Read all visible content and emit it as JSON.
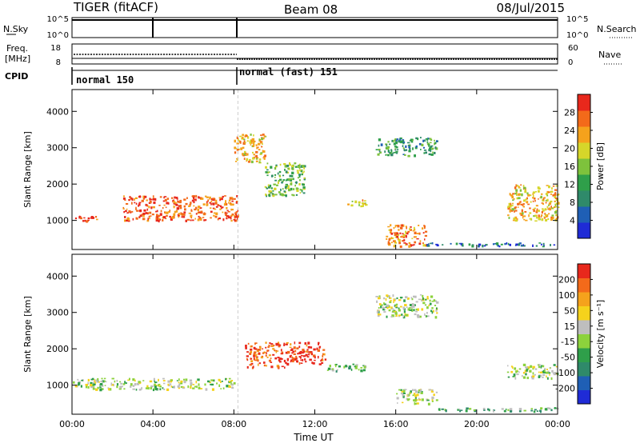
{
  "header": {
    "title": "TIGER (fitACF)",
    "beam": "Beam 08",
    "date": "08/Jul/2015"
  },
  "strip_panels": {
    "nsky": {
      "left_label": "N.Sky",
      "left_ticks": [
        "10^5",
        "10^0"
      ],
      "right_label": "N.Search",
      "right_ticks": [
        "10^5",
        "10^0"
      ]
    },
    "freq": {
      "left_label_1": "Freq.",
      "left_label_2": "[MHz]",
      "left_ticks": [
        "18",
        "8"
      ],
      "right_label": "Nave",
      "right_ticks": [
        "60",
        "0"
      ]
    },
    "cpid": {
      "label": "CPID",
      "segments": [
        "normal 150",
        "normal (fast) 151"
      ]
    }
  },
  "chart_data": [
    {
      "type": "heatmap",
      "name": "power",
      "ylabel": "Slant Range [km]",
      "xlabel": "",
      "x_ticks": [
        "00:00",
        "04:00",
        "08:00",
        "12:00",
        "16:00",
        "20:00",
        "00:00"
      ],
      "y_ticks": [
        "1000",
        "2000",
        "3000",
        "4000"
      ],
      "ylim": [
        200,
        4600
      ],
      "xlim_hours": [
        0,
        24
      ],
      "colorbar": {
        "label": "Power [dB]",
        "ticks": [
          "4",
          "8",
          "12",
          "16",
          "20",
          "24",
          "28"
        ],
        "colors": [
          "#1f2bd6",
          "#1f5fb5",
          "#2f8a6a",
          "#2f9f4a",
          "#7ec23c",
          "#d6d62a",
          "#f5a21c",
          "#f36a1a",
          "#e8281c"
        ]
      },
      "features": [
        {
          "hours": [
            0,
            1.4
          ],
          "km": [
            1000,
            1150
          ],
          "level": 0.9
        },
        {
          "hours": [
            2.5,
            8.2
          ],
          "km": [
            1000,
            1700
          ],
          "level": 0.85
        },
        {
          "hours": [
            8.0,
            9.5
          ],
          "km": [
            2600,
            3400
          ],
          "level": 0.7
        },
        {
          "hours": [
            9.5,
            11.5
          ],
          "km": [
            1700,
            2600
          ],
          "level": 0.45
        },
        {
          "hours": [
            13.5,
            14.5
          ],
          "km": [
            1400,
            1600
          ],
          "level": 0.65
        },
        {
          "hours": [
            15.0,
            18.0
          ],
          "km": [
            2800,
            3300
          ],
          "level": 0.35
        },
        {
          "hours": [
            15.5,
            17.5
          ],
          "km": [
            300,
            900
          ],
          "level": 0.8
        },
        {
          "hours": [
            17.5,
            24
          ],
          "km": [
            300,
            400
          ],
          "level": 0.2
        },
        {
          "hours": [
            21.5,
            24
          ],
          "km": [
            1000,
            2000
          ],
          "level": 0.7
        }
      ]
    },
    {
      "type": "heatmap",
      "name": "velocity",
      "ylabel": "Slant Range [km]",
      "xlabel": "Time UT",
      "x_ticks": [
        "00:00",
        "04:00",
        "08:00",
        "12:00",
        "16:00",
        "20:00",
        "00:00"
      ],
      "y_ticks": [
        "1000",
        "2000",
        "3000",
        "4000"
      ],
      "ylim": [
        200,
        4600
      ],
      "xlim_hours": [
        0,
        24
      ],
      "colorbar": {
        "label": "Velocity [m s⁻¹]",
        "ticks": [
          "200",
          "100",
          "50",
          "15",
          "-15",
          "-50",
          "-100",
          "-200"
        ],
        "colors": [
          "#1f2bd6",
          "#1f5fb5",
          "#2f8a6a",
          "#2f9f4a",
          "#8cd23c",
          "#bebebe",
          "#f5d21c",
          "#f5a21c",
          "#f36a1a",
          "#e8281c"
        ]
      },
      "features": [
        {
          "hours": [
            0,
            4.0
          ],
          "km": [
            900,
            1200
          ],
          "level": 0.5
        },
        {
          "hours": [
            4.0,
            8.0
          ],
          "km": [
            900,
            1200
          ],
          "level": 0.5
        },
        {
          "hours": [
            8.5,
            10.5
          ],
          "km": [
            1500,
            2200
          ],
          "level": 0.9
        },
        {
          "hours": [
            10.5,
            12.5
          ],
          "km": [
            1600,
            2200
          ],
          "level": 0.95
        },
        {
          "hours": [
            12.5,
            14.5
          ],
          "km": [
            1400,
            1600
          ],
          "level": 0.4
        },
        {
          "hours": [
            15.0,
            18.0
          ],
          "km": [
            2900,
            3500
          ],
          "level": 0.5
        },
        {
          "hours": [
            16.0,
            18.0
          ],
          "km": [
            500,
            900
          ],
          "level": 0.5
        },
        {
          "hours": [
            18.0,
            24
          ],
          "km": [
            300,
            400
          ],
          "level": 0.4
        },
        {
          "hours": [
            21.5,
            24
          ],
          "km": [
            1200,
            1600
          ],
          "level": 0.5
        }
      ]
    }
  ]
}
